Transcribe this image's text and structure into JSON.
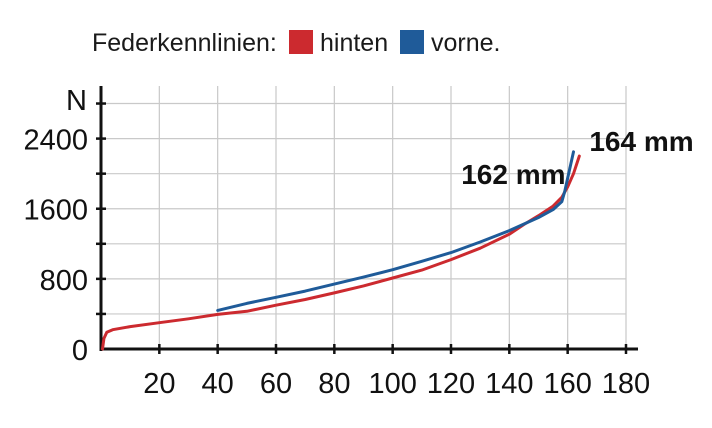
{
  "chart_data": {
    "type": "line",
    "title": "",
    "legend": {
      "label": "Federkennlinien:",
      "placement": "top-left",
      "entries": [
        {
          "name": "hinten",
          "color": "#cc2a2f"
        },
        {
          "name": "vorne.",
          "color": "#1f5b99"
        }
      ]
    },
    "xlabel": "",
    "ylabel": "N",
    "xlim": [
      0,
      180
    ],
    "ylim": [
      0,
      3000
    ],
    "xticks": [
      20,
      40,
      60,
      80,
      100,
      120,
      140,
      160,
      180
    ],
    "yticks": [
      0,
      800,
      1600,
      2400
    ],
    "grid": true,
    "series": [
      {
        "name": "hinten",
        "color": "#cc2a2f",
        "x": [
          0.5,
          1,
          2,
          4,
          10,
          20,
          30,
          40,
          50,
          60,
          70,
          80,
          90,
          100,
          110,
          120,
          130,
          140,
          145,
          150,
          155,
          158,
          160,
          162,
          164
        ],
        "y": [
          0,
          120,
          190,
          220,
          255,
          300,
          345,
          395,
          430,
          500,
          565,
          640,
          720,
          810,
          900,
          1020,
          1150,
          1310,
          1420,
          1520,
          1630,
          1730,
          1850,
          2000,
          2200
        ]
      },
      {
        "name": "vorne.",
        "color": "#1f5b99",
        "x": [
          40,
          50,
          60,
          70,
          80,
          90,
          100,
          110,
          120,
          130,
          140,
          150,
          155,
          158,
          159,
          160,
          161,
          162
        ],
        "y": [
          440,
          520,
          590,
          660,
          740,
          820,
          905,
          1000,
          1100,
          1220,
          1350,
          1500,
          1590,
          1680,
          1800,
          1950,
          2100,
          2250
        ]
      }
    ],
    "annotations": [
      {
        "text": "162 mm",
        "x": 162,
        "y": 2250
      },
      {
        "text": "164 mm",
        "x": 164,
        "y": 2200
      }
    ]
  }
}
